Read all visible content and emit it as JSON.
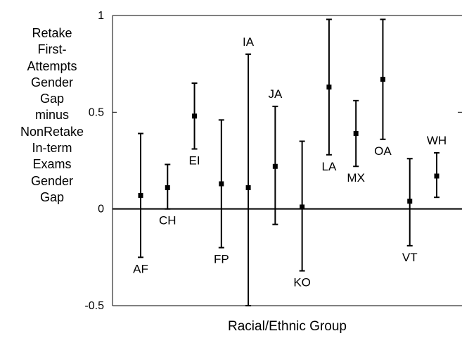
{
  "chart_data": {
    "type": "scatter",
    "title": "",
    "ylabel_lines": [
      "Retake",
      "First-",
      "Attempts",
      "Gender",
      "Gap",
      "minus",
      "NonRetake",
      "In-term",
      "Exams",
      "Gender",
      "Gap"
    ],
    "xlabel": "Racial/Ethnic Group",
    "ylim": [
      -0.5,
      1
    ],
    "yticks": [
      {
        "value": -0.5,
        "label": "-0.5"
      },
      {
        "value": 0,
        "label": "0"
      },
      {
        "value": 0.5,
        "label": "0.5"
      },
      {
        "value": 1,
        "label": "1"
      }
    ],
    "grid": false,
    "points": [
      {
        "category": "AF",
        "value": 0.07,
        "lower": -0.25,
        "upper": 0.39,
        "label_side": "below"
      },
      {
        "category": "CH",
        "value": 0.11,
        "lower": 0.0,
        "upper": 0.23,
        "label_side": "below"
      },
      {
        "category": "EI",
        "value": 0.48,
        "lower": 0.31,
        "upper": 0.65,
        "label_side": "below"
      },
      {
        "category": "FP",
        "value": 0.13,
        "lower": -0.2,
        "upper": 0.46,
        "label_side": "below"
      },
      {
        "category": "IA",
        "value": 0.11,
        "lower": -0.5,
        "upper": 0.8,
        "label_side": "above"
      },
      {
        "category": "JA",
        "value": 0.22,
        "lower": -0.08,
        "upper": 0.53,
        "label_side": "above"
      },
      {
        "category": "KO",
        "value": 0.01,
        "lower": -0.32,
        "upper": 0.35,
        "label_side": "below"
      },
      {
        "category": "LA",
        "value": 0.63,
        "lower": 0.28,
        "upper": 0.98,
        "label_side": "below"
      },
      {
        "category": "MX",
        "value": 0.39,
        "lower": 0.22,
        "upper": 0.56,
        "label_side": "below"
      },
      {
        "category": "OA",
        "value": 0.67,
        "lower": 0.36,
        "upper": 0.98,
        "label_side": "below"
      },
      {
        "category": "VT",
        "value": 0.04,
        "lower": -0.19,
        "upper": 0.26,
        "label_side": "below"
      },
      {
        "category": "WH",
        "value": 0.17,
        "lower": 0.06,
        "upper": 0.29,
        "label_side": "above"
      }
    ]
  }
}
